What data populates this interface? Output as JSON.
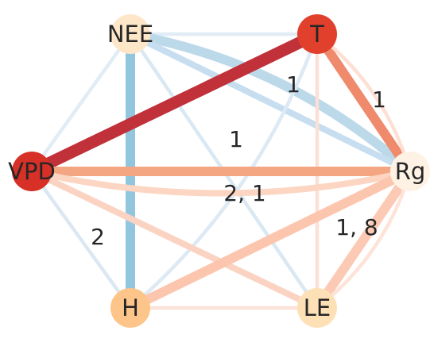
{
  "nodes": [
    {
      "id": "NEE",
      "label": "NEE",
      "color": "#fde7c8"
    },
    {
      "id": "T",
      "label": "T",
      "color": "#e0402c"
    },
    {
      "id": "VPD",
      "label": "VPD",
      "color": "#d73027"
    },
    {
      "id": "Rg",
      "label": "Rg",
      "color": "#fef2e4"
    },
    {
      "id": "H",
      "label": "H",
      "color": "#fdc58a"
    },
    {
      "id": "LE",
      "label": "LE",
      "color": "#fee0b6"
    }
  ],
  "edges": [
    {
      "from": "NEE",
      "to": "T",
      "color": "#e1ecf5",
      "strength": 1
    },
    {
      "from": "NEE",
      "to": "VPD",
      "color": "#e1ecf5",
      "strength": 1
    },
    {
      "from": "NEE",
      "to": "H",
      "color": "#92c5de",
      "strength": 3
    },
    {
      "from": "NEE",
      "to": "LE",
      "color": "#d9e8f3",
      "strength": 1
    },
    {
      "from": "NEE",
      "to": "Rg",
      "color": "#bcd9ea",
      "strength": 3,
      "curve": 1
    },
    {
      "from": "NEE",
      "to": "Rg",
      "color": "#c6def0",
      "strength": 2,
      "curve": 0
    },
    {
      "from": "T",
      "to": "VPD",
      "color": "#c0313a",
      "strength": 4
    },
    {
      "from": "T",
      "to": "Rg",
      "color": "#ef8a6c",
      "strength": 3
    },
    {
      "from": "T",
      "to": "LE",
      "color": "#fbe0d5",
      "strength": 1
    },
    {
      "from": "T",
      "to": "H",
      "color": "#dde9f4",
      "strength": 1,
      "curve": 1
    },
    {
      "from": "VPD",
      "to": "Rg",
      "color": "#f4a582",
      "strength": 3
    },
    {
      "from": "VPD",
      "to": "Rg",
      "color": "#fcd6c2",
      "strength": 2,
      "curve": 1
    },
    {
      "from": "VPD",
      "to": "LE",
      "color": "#fbd3c2",
      "strength": 2
    },
    {
      "from": "VPD",
      "to": "H",
      "color": "#dbe8f3",
      "strength": 1
    },
    {
      "from": "H",
      "to": "Rg",
      "color": "#fcc6ae",
      "strength": 3
    },
    {
      "from": "H",
      "to": "LE",
      "color": "#fbe3da",
      "strength": 1
    },
    {
      "from": "LE",
      "to": "Rg",
      "color": "#fcc9b4",
      "strength": 3
    },
    {
      "from": "LE",
      "to": "Rg",
      "color": "#fde3d8",
      "strength": 1,
      "curve": 1
    },
    {
      "from": "T",
      "to": "Rg",
      "color": "#fde0d3",
      "strength": 1,
      "curve": 1
    }
  ],
  "edge_labels": [
    {
      "id": "t-rg",
      "text": "1"
    },
    {
      "id": "nee-rg",
      "text": "1"
    },
    {
      "id": "vpd-rg",
      "text": "1"
    },
    {
      "id": "center",
      "text": "2, 1"
    },
    {
      "id": "vpd-h",
      "text": "2"
    },
    {
      "id": "le-rg",
      "text": "1, 8"
    }
  ]
}
